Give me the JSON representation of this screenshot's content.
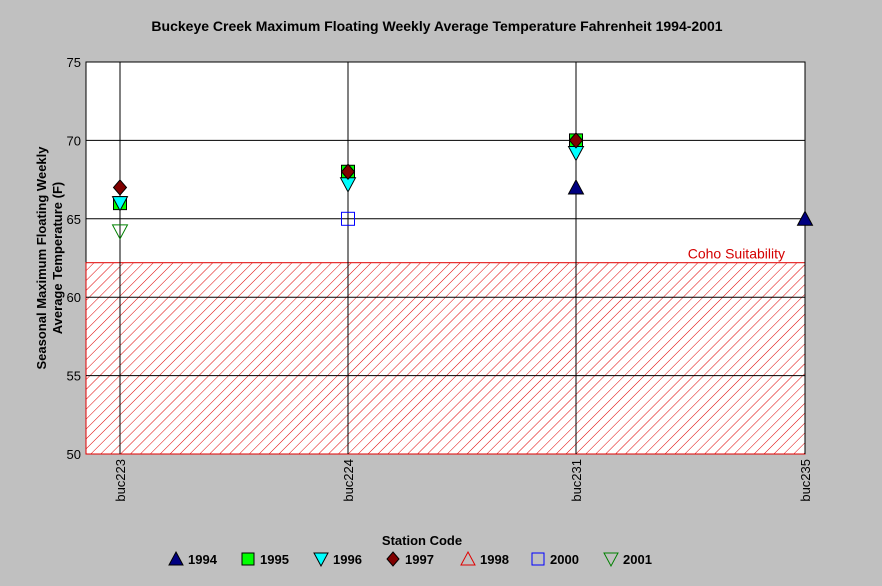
{
  "chart_data": {
    "type": "scatter",
    "title": "Buckeye Creek Maximum Floating Weekly Average Temperature Fahrenheit  1994-2001",
    "xlabel": "Station Code",
    "ylabel_lines": [
      "Seasonal Maximum Floating Weekly",
      "Average Temperature (F)"
    ],
    "categories": [
      "buc223",
      "buc224",
      "buc231",
      "buc235"
    ],
    "ylim": [
      50,
      75
    ],
    "yticks": [
      50,
      55,
      60,
      65,
      70,
      75
    ],
    "grid": true,
    "legend_position": "bottom",
    "band": {
      "label": "Coho Suitability",
      "from": 50,
      "to": 62.2,
      "color": "#e00000"
    },
    "series": [
      {
        "name": "1994",
        "marker": "triangle-up",
        "color": "#000080",
        "filled": true,
        "values": [
          null,
          null,
          67,
          65
        ]
      },
      {
        "name": "1995",
        "marker": "square",
        "color": "#00ff00",
        "filled": true,
        "values": [
          66,
          68,
          70,
          null
        ]
      },
      {
        "name": "1996",
        "marker": "triangle-down",
        "color": "#00ffff",
        "filled": true,
        "values": [
          66,
          67.2,
          69.2,
          null
        ]
      },
      {
        "name": "1997",
        "marker": "diamond",
        "color": "#800000",
        "filled": true,
        "values": [
          67,
          68,
          70,
          null
        ]
      },
      {
        "name": "1998",
        "marker": "triangle-up",
        "color": "#e00000",
        "filled": false,
        "values": [
          null,
          null,
          null,
          null
        ]
      },
      {
        "name": "2000",
        "marker": "square",
        "color": "#0000ff",
        "filled": false,
        "values": [
          null,
          65,
          null,
          null
        ]
      },
      {
        "name": "2001",
        "marker": "triangle-down",
        "color": "#008000",
        "filled": false,
        "values": [
          64.2,
          null,
          null,
          null
        ]
      }
    ]
  }
}
